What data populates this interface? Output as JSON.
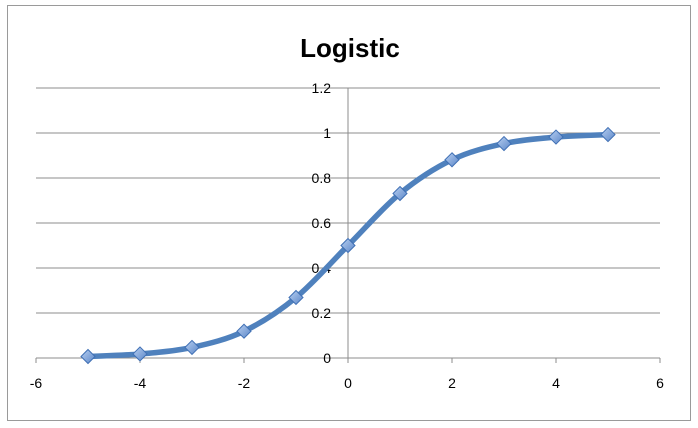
{
  "chart_data": {
    "type": "scatter",
    "title": "Logistic",
    "xlabel": "",
    "ylabel": "",
    "xlim": [
      -6,
      6
    ],
    "ylim": [
      0,
      1.2
    ],
    "x_ticks": [
      -6,
      -4,
      -2,
      0,
      2,
      4,
      6
    ],
    "y_ticks": [
      0,
      0.2,
      0.4,
      0.6,
      0.8,
      1,
      1.2
    ],
    "x_tick_labels": [
      "-6",
      "-4",
      "-2",
      "0",
      "2",
      "4",
      "6"
    ],
    "y_tick_labels": [
      "0",
      "0.2",
      "0.4",
      "0.6",
      "0.8",
      "1",
      "1.2"
    ],
    "grid": "horizontal",
    "legend": "none",
    "series": [
      {
        "line_style": "smooth",
        "marker": "diamond",
        "color": "#4f81bd",
        "marker_color": "#7ea6e0",
        "x": [
          -5,
          -4,
          -3,
          -2,
          -1,
          0,
          1,
          2,
          3,
          4,
          5
        ],
        "y": [
          0.0067,
          0.018,
          0.047,
          0.119,
          0.269,
          0.5,
          0.731,
          0.881,
          0.953,
          0.982,
          0.993
        ]
      }
    ]
  }
}
